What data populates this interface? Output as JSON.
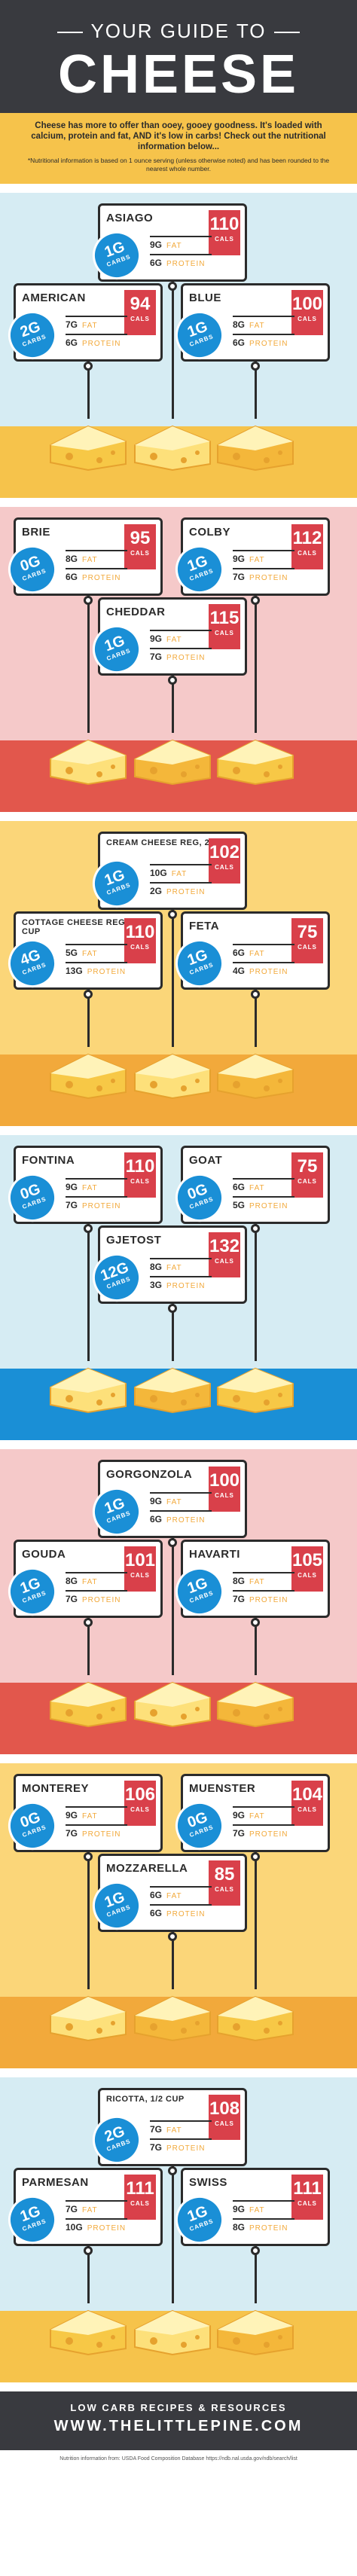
{
  "header": {
    "line1": "YOUR GUIDE TO",
    "line2": "CHEESE"
  },
  "intro": {
    "text": "Cheese has more to offer than ooey, gooey goodness. It's loaded with calcium, protein and fat, AND it's low in carbs! Check out the nutritional information below...",
    "note": "*Nutritional information is based on 1 ounce serving (unless otherwise noted) and has been rounded to the nearest whole number."
  },
  "labels": {
    "cals": "CALS",
    "carbs": "CARBS",
    "fat": "FAT",
    "protein": "PROTEIN"
  },
  "colors": {
    "dark": "#393a3f",
    "red": "#d9404a",
    "blue": "#1a8fd6",
    "yellow": "#f6c34b",
    "orange": "#f2a93b"
  },
  "sections": [
    {
      "bgA": "#d6ecf3",
      "bgB": "#d6ecf3",
      "floor": "#f6c34b",
      "cheeses": [
        {
          "name": "ASIAGO",
          "cals": "110",
          "carbs": "1G",
          "fat": "9G",
          "protein": "6G"
        },
        {
          "name": "AMERICAN",
          "cals": "94",
          "carbs": "2G",
          "fat": "7G",
          "protein": "6G"
        },
        {
          "name": "BLUE",
          "cals": "100",
          "carbs": "1G",
          "fat": "8G",
          "protein": "6G"
        }
      ]
    },
    {
      "bgA": "#f5c9c9",
      "bgB": "#f5c9c9",
      "floor": "#e2574c",
      "cheeses": [
        {
          "name": "BRIE",
          "cals": "95",
          "carbs": "0G",
          "fat": "8G",
          "protein": "6G"
        },
        {
          "name": "COLBY",
          "cals": "112",
          "carbs": "1G",
          "fat": "9G",
          "protein": "7G"
        },
        {
          "name": "CHEDDAR",
          "cals": "115",
          "carbs": "1G",
          "fat": "9G",
          "protein": "7G"
        }
      ]
    },
    {
      "bgA": "#fbd679",
      "bgB": "#fbd679",
      "floor": "#f2a93b",
      "cheeses": [
        {
          "name": "CREAM CHEESE REG, 2 TBSP",
          "cals": "102",
          "carbs": "1G",
          "fat": "10G",
          "protein": "2G"
        },
        {
          "name": "COTTAGE CHEESE REG, 1/2 CUP",
          "cals": "110",
          "carbs": "4G",
          "fat": "5G",
          "protein": "13G"
        },
        {
          "name": "FETA",
          "cals": "75",
          "carbs": "1G",
          "fat": "6G",
          "protein": "4G"
        }
      ]
    },
    {
      "bgA": "#d6ecf3",
      "bgB": "#d6ecf3",
      "floor": "#1a8fd6",
      "cheeses": [
        {
          "name": "FONTINA",
          "cals": "110",
          "carbs": "0G",
          "fat": "9G",
          "protein": "7G"
        },
        {
          "name": "GOAT",
          "cals": "75",
          "carbs": "0G",
          "fat": "6G",
          "protein": "5G"
        },
        {
          "name": "GJETOST",
          "cals": "132",
          "carbs": "12G",
          "fat": "8G",
          "protein": "3G"
        }
      ]
    },
    {
      "bgA": "#f5c9c9",
      "bgB": "#f5c9c9",
      "floor": "#e2574c",
      "cheeses": [
        {
          "name": "GORGONZOLA",
          "cals": "100",
          "carbs": "1G",
          "fat": "9G",
          "protein": "6G"
        },
        {
          "name": "GOUDA",
          "cals": "101",
          "carbs": "1G",
          "fat": "8G",
          "protein": "7G"
        },
        {
          "name": "HAVARTI",
          "cals": "105",
          "carbs": "1G",
          "fat": "8G",
          "protein": "7G"
        }
      ]
    },
    {
      "bgA": "#fbd679",
      "bgB": "#fbd679",
      "floor": "#f2a93b",
      "cheeses": [
        {
          "name": "MONTEREY",
          "cals": "106",
          "carbs": "0G",
          "fat": "9G",
          "protein": "7G"
        },
        {
          "name": "MUENSTER",
          "cals": "104",
          "carbs": "0G",
          "fat": "9G",
          "protein": "7G"
        },
        {
          "name": "MOZZARELLA",
          "cals": "85",
          "carbs": "1G",
          "fat": "6G",
          "protein": "6G"
        }
      ]
    },
    {
      "bgA": "#d6ecf3",
      "bgB": "#d6ecf3",
      "floor": "#f6c34b",
      "cheeses": [
        {
          "name": "RICOTTA, 1/2 CUP",
          "cals": "108",
          "carbs": "2G",
          "fat": "7G",
          "protein": "7G"
        },
        {
          "name": "PARMESAN",
          "cals": "111",
          "carbs": "1G",
          "fat": "7G",
          "protein": "10G"
        },
        {
          "name": "SWISS",
          "cals": "111",
          "carbs": "1G",
          "fat": "9G",
          "protein": "8G"
        }
      ]
    }
  ],
  "footer": {
    "line1": "LOW CARB RECIPES & RESOURCES",
    "line2": "WWW.THELITTLEPINE.COM",
    "source": "Nutrition information from: USDA Food Composition Database https://ndb.nal.usda.gov/ndb/search/list"
  }
}
